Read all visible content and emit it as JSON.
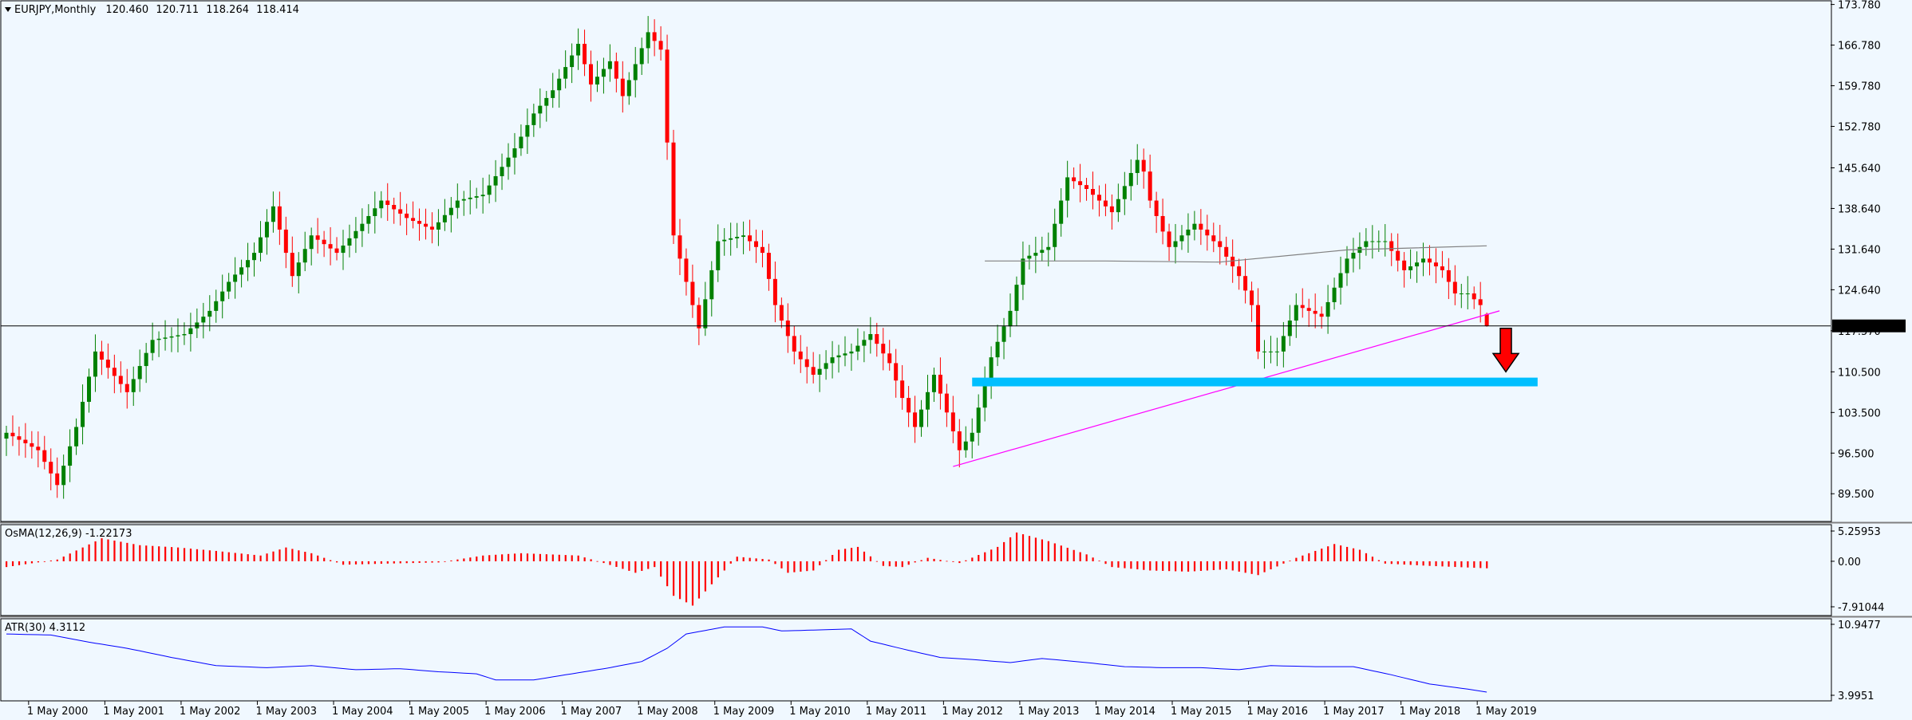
{
  "chart_data": [
    {
      "type": "candlestick",
      "title": "EURJPY,Monthly",
      "ohlc": [
        "120.460",
        "120.711",
        "118.264",
        "118.414"
      ],
      "last_price": 118.414,
      "last_price_label": "118.414",
      "ylim": [
        85.0,
        174.0
      ],
      "y_ticks": [
        "173.780",
        "166.780",
        "159.780",
        "152.780",
        "145.640",
        "138.640",
        "131.640",
        "124.640",
        "117.570",
        "110.500",
        "103.500",
        "96.500",
        "89.500"
      ],
      "x_ticks": [
        "1 May 2000",
        "1 May 2001",
        "1 May 2002",
        "1 May 2003",
        "1 May 2004",
        "1 May 2005",
        "1 May 2006",
        "1 May 2007",
        "1 May 2008",
        "1 May 2009",
        "1 May 2010",
        "1 May 2011",
        "1 May 2012",
        "1 May 2013",
        "1 May 2014",
        "1 May 2015",
        "1 May 2016",
        "1 May 2017",
        "1 May 2018",
        "1 May 2019"
      ],
      "close_path": [
        [
          "2000-01",
          100
        ],
        [
          "2000-06",
          97
        ],
        [
          "2000-09",
          91
        ],
        [
          "2000-12",
          101
        ],
        [
          "2001-03",
          114
        ],
        [
          "2001-08",
          107
        ],
        [
          "2001-12",
          116
        ],
        [
          "2002-05",
          117
        ],
        [
          "2002-09",
          121
        ],
        [
          "2002-12",
          126
        ],
        [
          "2003-04",
          131
        ],
        [
          "2003-07",
          139
        ],
        [
          "2003-10",
          127
        ],
        [
          "2004-01",
          134
        ],
        [
          "2004-05",
          131
        ],
        [
          "2004-09",
          136
        ],
        [
          "2004-12",
          140
        ],
        [
          "2005-04",
          137
        ],
        [
          "2005-08",
          135
        ],
        [
          "2005-12",
          140
        ],
        [
          "2006-04",
          141
        ],
        [
          "2006-09",
          149
        ],
        [
          "2006-12",
          155
        ],
        [
          "2007-03",
          159
        ],
        [
          "2007-07",
          167
        ],
        [
          "2007-09",
          160
        ],
        [
          "2007-12",
          164
        ],
        [
          "2008-02",
          158
        ],
        [
          "2008-06",
          169
        ],
        [
          "2008-08",
          166
        ],
        [
          "2008-10",
          134
        ],
        [
          "2008-12",
          126
        ],
        [
          "2009-02",
          118
        ],
        [
          "2009-05",
          133
        ],
        [
          "2009-09",
          134
        ],
        [
          "2009-12",
          131
        ],
        [
          "2010-02",
          122
        ],
        [
          "2010-05",
          114
        ],
        [
          "2010-08",
          110
        ],
        [
          "2010-11",
          113
        ],
        [
          "2011-02",
          114
        ],
        [
          "2011-05",
          117
        ],
        [
          "2011-08",
          112
        ],
        [
          "2011-10",
          106
        ],
        [
          "2011-12",
          101
        ],
        [
          "2012-03",
          110
        ],
        [
          "2012-07",
          97
        ],
        [
          "2012-09",
          100
        ],
        [
          "2012-12",
          113
        ],
        [
          "2013-03",
          121
        ],
        [
          "2013-05",
          130
        ],
        [
          "2013-09",
          132
        ],
        [
          "2013-12",
          144
        ],
        [
          "2014-03",
          142
        ],
        [
          "2014-07",
          138
        ],
        [
          "2014-11",
          147
        ],
        [
          "2014-12",
          145
        ],
        [
          "2015-01",
          140
        ],
        [
          "2015-04",
          132
        ],
        [
          "2015-08",
          136
        ],
        [
          "2015-12",
          132
        ],
        [
          "2016-03",
          127
        ],
        [
          "2016-05",
          122
        ],
        [
          "2016-06",
          114
        ],
        [
          "2016-09",
          114
        ],
        [
          "2016-12",
          122
        ],
        [
          "2017-04",
          120
        ],
        [
          "2017-08",
          130
        ],
        [
          "2017-11",
          133
        ],
        [
          "2018-02",
          133
        ],
        [
          "2018-05",
          128
        ],
        [
          "2018-08",
          130
        ],
        [
          "2018-11",
          128
        ],
        [
          "2019-01",
          124
        ],
        [
          "2019-03",
          124
        ],
        [
          "2019-05",
          122
        ],
        [
          "2019-06",
          118.4
        ]
      ],
      "moving_average": [
        [
          "2012-11",
          129.6
        ],
        [
          "2014-06",
          129.6
        ],
        [
          "2015-12",
          129.4
        ],
        [
          "2017-08",
          131.5
        ],
        [
          "2019-06",
          132.2
        ]
      ],
      "trendline": {
        "from": [
          "2012-06",
          94.2
        ],
        "to": [
          "2019-08",
          121.0
        ]
      },
      "support_zone": {
        "from": "2012-09",
        "to": "2020-02",
        "y_range": [
          108.0,
          109.5
        ]
      },
      "down_arrow": {
        "date": "2019-09",
        "y_top": 118.0,
        "y_bottom": 110.5
      },
      "colors": {
        "bull": "#008000",
        "bear": "#ff0000",
        "trendline": "#ff00ff",
        "zone": "#00bfff",
        "moving_average": "#808080"
      }
    },
    {
      "type": "histogram",
      "title": "OsMA(12,26,9) -1.22173",
      "ylim": [
        -7.91044,
        5.25953
      ],
      "y_ticks": [
        "5.25953",
        "0.00",
        "-7.91044"
      ],
      "value_path": [
        [
          "2000-01",
          -1.0
        ],
        [
          "2000-09",
          0.3
        ],
        [
          "2001-01",
          2.4
        ],
        [
          "2001-04",
          4.0
        ],
        [
          "2001-10",
          2.8
        ],
        [
          "2002-04",
          2.4
        ],
        [
          "2002-10",
          1.8
        ],
        [
          "2003-05",
          1.0
        ],
        [
          "2003-09",
          2.4
        ],
        [
          "2004-01",
          1.4
        ],
        [
          "2004-06",
          -0.6
        ],
        [
          "2005-01",
          -0.4
        ],
        [
          "2005-09",
          -0.2
        ],
        [
          "2006-04",
          1.0
        ],
        [
          "2006-10",
          1.4
        ],
        [
          "2007-07",
          1.0
        ],
        [
          "2007-11",
          -0.3
        ],
        [
          "2008-04",
          -2.0
        ],
        [
          "2008-07",
          -1.0
        ],
        [
          "2008-10",
          -6.0
        ],
        [
          "2009-01",
          -7.7
        ],
        [
          "2009-04",
          -4.0
        ],
        [
          "2009-08",
          0.8
        ],
        [
          "2010-01",
          0.3
        ],
        [
          "2010-04",
          -2.0
        ],
        [
          "2010-08",
          -1.6
        ],
        [
          "2010-12",
          2.0
        ],
        [
          "2011-03",
          2.5
        ],
        [
          "2011-07",
          -0.8
        ],
        [
          "2011-10",
          -1.0
        ],
        [
          "2012-02",
          0.6
        ],
        [
          "2012-07",
          -0.3
        ],
        [
          "2013-01",
          2.5
        ],
        [
          "2013-04",
          5.0
        ],
        [
          "2013-09",
          3.5
        ],
        [
          "2014-03",
          1.2
        ],
        [
          "2014-07",
          -1.0
        ],
        [
          "2015-01",
          -1.6
        ],
        [
          "2015-07",
          -1.8
        ],
        [
          "2016-01",
          -1.4
        ],
        [
          "2016-06",
          -2.4
        ],
        [
          "2016-12",
          0.6
        ],
        [
          "2017-06",
          3.0
        ],
        [
          "2017-10",
          2.0
        ],
        [
          "2018-02",
          -0.4
        ],
        [
          "2018-09",
          -0.8
        ],
        [
          "2019-06",
          -1.22
        ]
      ],
      "colors": {
        "bar": "#ff0000"
      }
    },
    {
      "type": "line",
      "title": "ATR(30) 4.3112",
      "ylim": [
        3.9951,
        10.9477
      ],
      "y_ticks": [
        "10.9477",
        "3.9951"
      ],
      "value_path": [
        [
          "2000-01",
          10.0
        ],
        [
          "2000-08",
          9.9
        ],
        [
          "2001-02",
          9.2
        ],
        [
          "2001-08",
          8.6
        ],
        [
          "2002-03",
          7.7
        ],
        [
          "2002-10",
          6.9
        ],
        [
          "2003-06",
          6.7
        ],
        [
          "2004-01",
          6.9
        ],
        [
          "2004-08",
          6.5
        ],
        [
          "2005-03",
          6.6
        ],
        [
          "2005-09",
          6.3
        ],
        [
          "2006-03",
          6.1
        ],
        [
          "2006-06",
          5.5
        ],
        [
          "2006-12",
          5.5
        ],
        [
          "2007-06",
          6.1
        ],
        [
          "2007-12",
          6.7
        ],
        [
          "2008-05",
          7.3
        ],
        [
          "2008-09",
          8.6
        ],
        [
          "2008-12",
          10.0
        ],
        [
          "2009-06",
          10.7
        ],
        [
          "2009-12",
          10.7
        ],
        [
          "2010-03",
          10.3
        ],
        [
          "2010-09",
          10.4
        ],
        [
          "2011-02",
          10.5
        ],
        [
          "2011-05",
          9.3
        ],
        [
          "2011-11",
          8.4
        ],
        [
          "2012-04",
          7.7
        ],
        [
          "2012-09",
          7.5
        ],
        [
          "2013-03",
          7.2
        ],
        [
          "2013-08",
          7.6
        ],
        [
          "2014-03",
          7.2
        ],
        [
          "2014-09",
          6.8
        ],
        [
          "2015-03",
          6.7
        ],
        [
          "2015-09",
          6.7
        ],
        [
          "2016-03",
          6.5
        ],
        [
          "2016-08",
          6.9
        ],
        [
          "2017-03",
          6.8
        ],
        [
          "2017-09",
          6.8
        ],
        [
          "2018-03",
          6.0
        ],
        [
          "2018-09",
          5.1
        ],
        [
          "2019-03",
          4.6
        ],
        [
          "2019-06",
          4.31
        ]
      ],
      "colors": {
        "line": "#0000ff"
      }
    }
  ]
}
